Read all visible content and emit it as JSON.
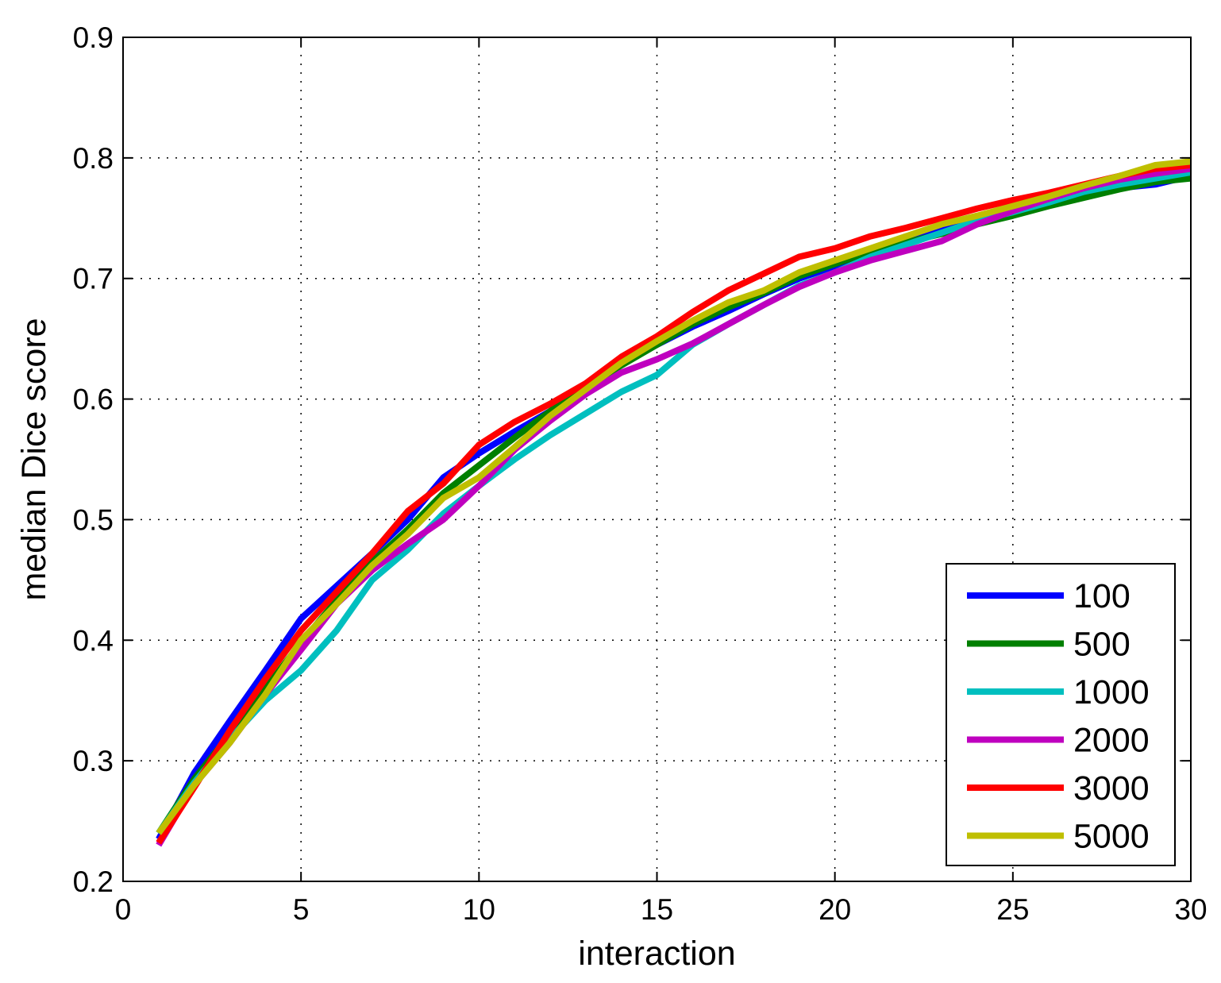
{
  "chart_data": {
    "type": "line",
    "title": "",
    "xlabel": "interaction",
    "ylabel": "median Dice score",
    "xlim": [
      0,
      30
    ],
    "ylim": [
      0.2,
      0.9
    ],
    "xticks": [
      0,
      5,
      10,
      15,
      20,
      25,
      30
    ],
    "xtick_labels": [
      "0",
      "5",
      "10",
      "15",
      "20",
      "25",
      "30"
    ],
    "yticks": [
      0.2,
      0.3,
      0.4,
      0.5,
      0.6,
      0.7,
      0.8,
      0.9
    ],
    "ytick_labels": [
      "0.2",
      "0.3",
      "0.4",
      "0.5",
      "0.6",
      "0.7",
      "0.8",
      "0.9"
    ],
    "grid": true,
    "legend_position": "bottom-right",
    "x": [
      1,
      2,
      3,
      4,
      5,
      6,
      7,
      8,
      9,
      10,
      11,
      12,
      13,
      14,
      15,
      16,
      17,
      18,
      19,
      20,
      21,
      22,
      23,
      24,
      25,
      26,
      27,
      28,
      29,
      30
    ],
    "series": [
      {
        "name": "100",
        "color": "#0000ff",
        "values": [
          0.235,
          0.29,
          0.333,
          0.375,
          0.418,
          0.445,
          0.472,
          0.5,
          0.535,
          0.555,
          0.573,
          0.59,
          0.61,
          0.63,
          0.645,
          0.66,
          0.673,
          0.687,
          0.7,
          0.71,
          0.72,
          0.73,
          0.74,
          0.75,
          0.755,
          0.762,
          0.768,
          0.775,
          0.778,
          0.785
        ]
      },
      {
        "name": "500",
        "color": "#007f00",
        "values": [
          0.24,
          0.285,
          0.322,
          0.36,
          0.398,
          0.433,
          0.465,
          0.492,
          0.522,
          0.545,
          0.568,
          0.59,
          0.61,
          0.628,
          0.645,
          0.662,
          0.676,
          0.688,
          0.702,
          0.712,
          0.722,
          0.73,
          0.737,
          0.745,
          0.752,
          0.76,
          0.767,
          0.774,
          0.78,
          0.783
        ]
      },
      {
        "name": "1000",
        "color": "#00bfbf",
        "values": [
          0.24,
          0.282,
          0.318,
          0.35,
          0.375,
          0.408,
          0.45,
          0.475,
          0.505,
          0.528,
          0.55,
          0.57,
          0.588,
          0.606,
          0.62,
          0.645,
          0.662,
          0.678,
          0.694,
          0.705,
          0.718,
          0.728,
          0.738,
          0.748,
          0.755,
          0.763,
          0.772,
          0.778,
          0.783,
          0.788
        ]
      },
      {
        "name": "2000",
        "color": "#bf00bf",
        "values": [
          0.23,
          0.28,
          0.315,
          0.355,
          0.392,
          0.43,
          0.458,
          0.48,
          0.5,
          0.528,
          0.558,
          0.582,
          0.604,
          0.622,
          0.633,
          0.646,
          0.662,
          0.678,
          0.693,
          0.705,
          0.715,
          0.723,
          0.731,
          0.745,
          0.756,
          0.766,
          0.775,
          0.782,
          0.787,
          0.791
        ]
      },
      {
        "name": "3000",
        "color": "#ff0000",
        "values": [
          0.232,
          0.278,
          0.325,
          0.368,
          0.408,
          0.44,
          0.472,
          0.507,
          0.53,
          0.562,
          0.581,
          0.596,
          0.613,
          0.635,
          0.652,
          0.672,
          0.69,
          0.704,
          0.718,
          0.725,
          0.735,
          0.742,
          0.75,
          0.758,
          0.765,
          0.771,
          0.778,
          0.785,
          0.791,
          0.794
        ]
      },
      {
        "name": "5000",
        "color": "#bfbf00",
        "values": [
          0.24,
          0.28,
          0.315,
          0.355,
          0.4,
          0.43,
          0.462,
          0.488,
          0.518,
          0.535,
          0.56,
          0.586,
          0.608,
          0.63,
          0.648,
          0.665,
          0.68,
          0.69,
          0.705,
          0.715,
          0.725,
          0.735,
          0.745,
          0.752,
          0.76,
          0.768,
          0.777,
          0.785,
          0.794,
          0.797
        ]
      }
    ]
  }
}
